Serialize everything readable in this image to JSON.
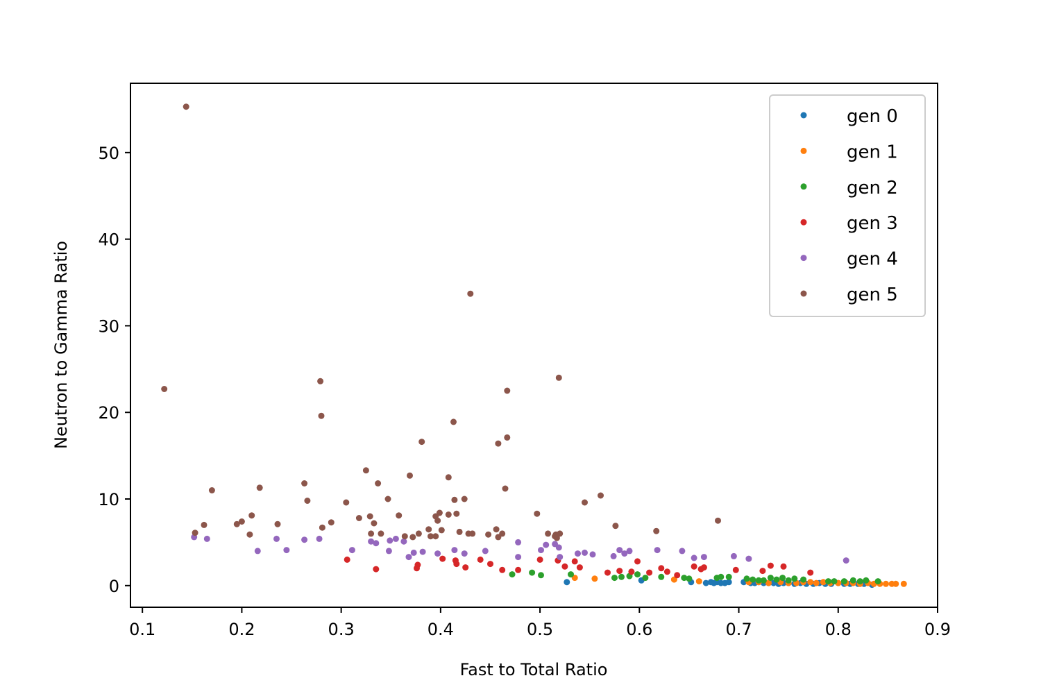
{
  "chart_data": {
    "type": "scatter",
    "title": "",
    "xlabel": "Fast to Total Ratio",
    "ylabel": "Neutron to Gamma Ratio",
    "xlim": [
      0.088,
      0.9
    ],
    "ylim": [
      -2.5,
      58
    ],
    "xticks": [
      0.1,
      0.2,
      0.3,
      0.4,
      0.5,
      0.6,
      0.7,
      0.8,
      0.9
    ],
    "xtick_labels": [
      "0.1",
      "0.2",
      "0.3",
      "0.4",
      "0.5",
      "0.6",
      "0.7",
      "0.8",
      "0.9"
    ],
    "yticks": [
      0,
      10,
      20,
      30,
      40,
      50
    ],
    "ytick_labels": [
      "0",
      "10",
      "20",
      "30",
      "40",
      "50"
    ],
    "grid": false,
    "legend_position": "top-right",
    "series": [
      {
        "name": "gen 0",
        "color": "#1f77b4",
        "points": [
          [
            0.527,
            0.4
          ],
          [
            0.602,
            0.6
          ],
          [
            0.652,
            0.4
          ],
          [
            0.667,
            0.3
          ],
          [
            0.672,
            0.4
          ],
          [
            0.675,
            0.3
          ],
          [
            0.678,
            0.4
          ],
          [
            0.682,
            0.3
          ],
          [
            0.686,
            0.3
          ],
          [
            0.69,
            0.4
          ],
          [
            0.705,
            0.4
          ],
          [
            0.712,
            0.3
          ],
          [
            0.716,
            0.3
          ],
          [
            0.72,
            0.4
          ],
          [
            0.725,
            0.3
          ],
          [
            0.73,
            0.3
          ],
          [
            0.735,
            0.3
          ],
          [
            0.74,
            0.2
          ],
          [
            0.745,
            0.3
          ],
          [
            0.75,
            0.3
          ],
          [
            0.756,
            0.2
          ],
          [
            0.762,
            0.3
          ],
          [
            0.768,
            0.2
          ],
          [
            0.775,
            0.2
          ],
          [
            0.781,
            0.3
          ],
          [
            0.787,
            0.2
          ],
          [
            0.793,
            0.2
          ],
          [
            0.8,
            0.3
          ],
          [
            0.806,
            0.2
          ],
          [
            0.812,
            0.2
          ],
          [
            0.82,
            0.2
          ],
          [
            0.826,
            0.2
          ],
          [
            0.834,
            0.1
          ]
        ]
      },
      {
        "name": "gen 1",
        "color": "#ff7f0e",
        "points": [
          [
            0.535,
            0.9
          ],
          [
            0.555,
            0.8
          ],
          [
            0.635,
            0.7
          ],
          [
            0.66,
            0.5
          ],
          [
            0.71,
            0.4
          ],
          [
            0.72,
            0.4
          ],
          [
            0.73,
            0.3
          ],
          [
            0.742,
            0.4
          ],
          [
            0.75,
            0.3
          ],
          [
            0.758,
            0.3
          ],
          [
            0.765,
            0.4
          ],
          [
            0.772,
            0.4
          ],
          [
            0.778,
            0.3
          ],
          [
            0.785,
            0.4
          ],
          [
            0.792,
            0.3
          ],
          [
            0.8,
            0.3
          ],
          [
            0.808,
            0.3
          ],
          [
            0.815,
            0.3
          ],
          [
            0.822,
            0.2
          ],
          [
            0.83,
            0.3
          ],
          [
            0.836,
            0.2
          ],
          [
            0.842,
            0.2
          ],
          [
            0.848,
            0.2
          ],
          [
            0.854,
            0.2
          ],
          [
            0.858,
            0.2
          ],
          [
            0.866,
            0.2
          ]
        ]
      },
      {
        "name": "gen 2",
        "color": "#2ca02c",
        "points": [
          [
            0.472,
            1.3
          ],
          [
            0.492,
            1.5
          ],
          [
            0.501,
            1.2
          ],
          [
            0.531,
            1.3
          ],
          [
            0.575,
            0.9
          ],
          [
            0.582,
            1.0
          ],
          [
            0.59,
            1.1
          ],
          [
            0.598,
            1.3
          ],
          [
            0.606,
            0.9
          ],
          [
            0.622,
            1.0
          ],
          [
            0.645,
            0.9
          ],
          [
            0.65,
            0.8
          ],
          [
            0.678,
            0.9
          ],
          [
            0.682,
            1.0
          ],
          [
            0.69,
            1.0
          ],
          [
            0.708,
            0.8
          ],
          [
            0.714,
            0.7
          ],
          [
            0.72,
            0.6
          ],
          [
            0.725,
            0.6
          ],
          [
            0.732,
            0.9
          ],
          [
            0.738,
            0.7
          ],
          [
            0.744,
            0.9
          ],
          [
            0.75,
            0.6
          ],
          [
            0.756,
            0.8
          ],
          [
            0.765,
            0.7
          ],
          [
            0.79,
            0.5
          ],
          [
            0.796,
            0.5
          ],
          [
            0.806,
            0.5
          ],
          [
            0.815,
            0.6
          ],
          [
            0.822,
            0.5
          ],
          [
            0.828,
            0.6
          ],
          [
            0.84,
            0.5
          ]
        ]
      },
      {
        "name": "gen 3",
        "color": "#d62728",
        "points": [
          [
            0.306,
            3.0
          ],
          [
            0.335,
            1.9
          ],
          [
            0.376,
            2.0
          ],
          [
            0.377,
            2.4
          ],
          [
            0.402,
            3.1
          ],
          [
            0.415,
            2.9
          ],
          [
            0.416,
            2.5
          ],
          [
            0.425,
            2.1
          ],
          [
            0.44,
            3.0
          ],
          [
            0.45,
            2.5
          ],
          [
            0.462,
            1.8
          ],
          [
            0.478,
            1.8
          ],
          [
            0.5,
            3.0
          ],
          [
            0.518,
            2.9
          ],
          [
            0.525,
            2.2
          ],
          [
            0.535,
            2.8
          ],
          [
            0.54,
            2.1
          ],
          [
            0.568,
            1.5
          ],
          [
            0.58,
            1.7
          ],
          [
            0.592,
            1.6
          ],
          [
            0.598,
            2.8
          ],
          [
            0.61,
            1.5
          ],
          [
            0.622,
            2.0
          ],
          [
            0.628,
            1.6
          ],
          [
            0.638,
            1.2
          ],
          [
            0.655,
            2.2
          ],
          [
            0.662,
            1.9
          ],
          [
            0.665,
            2.1
          ],
          [
            0.697,
            1.8
          ],
          [
            0.724,
            1.7
          ],
          [
            0.732,
            2.3
          ],
          [
            0.745,
            2.2
          ],
          [
            0.772,
            1.5
          ]
        ]
      },
      {
        "name": "gen 4",
        "color": "#9467bd",
        "points": [
          [
            0.152,
            5.6
          ],
          [
            0.165,
            5.4
          ],
          [
            0.216,
            4.0
          ],
          [
            0.235,
            5.4
          ],
          [
            0.245,
            4.1
          ],
          [
            0.263,
            5.3
          ],
          [
            0.278,
            5.4
          ],
          [
            0.311,
            4.1
          ],
          [
            0.33,
            5.1
          ],
          [
            0.335,
            4.9
          ],
          [
            0.348,
            4.0
          ],
          [
            0.349,
            5.2
          ],
          [
            0.355,
            5.4
          ],
          [
            0.363,
            5.1
          ],
          [
            0.368,
            3.3
          ],
          [
            0.373,
            3.8
          ],
          [
            0.382,
            3.9
          ],
          [
            0.397,
            3.7
          ],
          [
            0.414,
            4.1
          ],
          [
            0.424,
            3.7
          ],
          [
            0.445,
            4.0
          ],
          [
            0.478,
            5.0
          ],
          [
            0.478,
            3.3
          ],
          [
            0.501,
            4.1
          ],
          [
            0.506,
            4.7
          ],
          [
            0.515,
            4.8
          ],
          [
            0.519,
            4.4
          ],
          [
            0.52,
            3.3
          ],
          [
            0.538,
            3.7
          ],
          [
            0.545,
            3.8
          ],
          [
            0.553,
            3.6
          ],
          [
            0.574,
            3.4
          ],
          [
            0.58,
            4.1
          ],
          [
            0.585,
            3.7
          ],
          [
            0.59,
            4.0
          ],
          [
            0.618,
            4.1
          ],
          [
            0.643,
            4.0
          ],
          [
            0.655,
            3.2
          ],
          [
            0.665,
            3.3
          ],
          [
            0.695,
            3.4
          ],
          [
            0.71,
            3.1
          ],
          [
            0.808,
            2.9
          ]
        ]
      },
      {
        "name": "gen 5",
        "color": "#8c564b",
        "points": [
          [
            0.122,
            22.7
          ],
          [
            0.144,
            55.3
          ],
          [
            0.153,
            6.1
          ],
          [
            0.162,
            7.0
          ],
          [
            0.17,
            11.0
          ],
          [
            0.195,
            7.1
          ],
          [
            0.2,
            7.4
          ],
          [
            0.208,
            5.9
          ],
          [
            0.21,
            8.1
          ],
          [
            0.218,
            11.3
          ],
          [
            0.236,
            7.1
          ],
          [
            0.263,
            11.8
          ],
          [
            0.266,
            9.8
          ],
          [
            0.279,
            23.6
          ],
          [
            0.28,
            19.6
          ],
          [
            0.281,
            6.7
          ],
          [
            0.29,
            7.3
          ],
          [
            0.305,
            9.6
          ],
          [
            0.318,
            7.8
          ],
          [
            0.325,
            13.3
          ],
          [
            0.329,
            8.0
          ],
          [
            0.33,
            6.0
          ],
          [
            0.333,
            7.2
          ],
          [
            0.337,
            11.8
          ],
          [
            0.34,
            6.0
          ],
          [
            0.347,
            10.0
          ],
          [
            0.358,
            8.1
          ],
          [
            0.364,
            5.7
          ],
          [
            0.369,
            12.7
          ],
          [
            0.372,
            5.6
          ],
          [
            0.378,
            6.0
          ],
          [
            0.381,
            16.6
          ],
          [
            0.388,
            6.5
          ],
          [
            0.39,
            5.7
          ],
          [
            0.395,
            5.7
          ],
          [
            0.395,
            8.0
          ],
          [
            0.397,
            7.5
          ],
          [
            0.399,
            8.4
          ],
          [
            0.401,
            6.4
          ],
          [
            0.408,
            12.5
          ],
          [
            0.408,
            8.2
          ],
          [
            0.413,
            18.9
          ],
          [
            0.414,
            9.9
          ],
          [
            0.416,
            8.3
          ],
          [
            0.419,
            6.2
          ],
          [
            0.424,
            10.0
          ],
          [
            0.428,
            6.0
          ],
          [
            0.43,
            33.7
          ],
          [
            0.432,
            6.0
          ],
          [
            0.448,
            5.9
          ],
          [
            0.456,
            6.5
          ],
          [
            0.458,
            16.4
          ],
          [
            0.458,
            5.6
          ],
          [
            0.462,
            6.0
          ],
          [
            0.465,
            11.2
          ],
          [
            0.467,
            22.5
          ],
          [
            0.467,
            17.1
          ],
          [
            0.497,
            8.3
          ],
          [
            0.508,
            6.0
          ],
          [
            0.515,
            5.7
          ],
          [
            0.516,
            5.9
          ],
          [
            0.517,
            5.5
          ],
          [
            0.519,
            24.0
          ],
          [
            0.52,
            6.0
          ],
          [
            0.545,
            9.6
          ],
          [
            0.561,
            10.4
          ],
          [
            0.576,
            6.9
          ],
          [
            0.617,
            6.3
          ],
          [
            0.679,
            7.5
          ]
        ]
      }
    ]
  }
}
